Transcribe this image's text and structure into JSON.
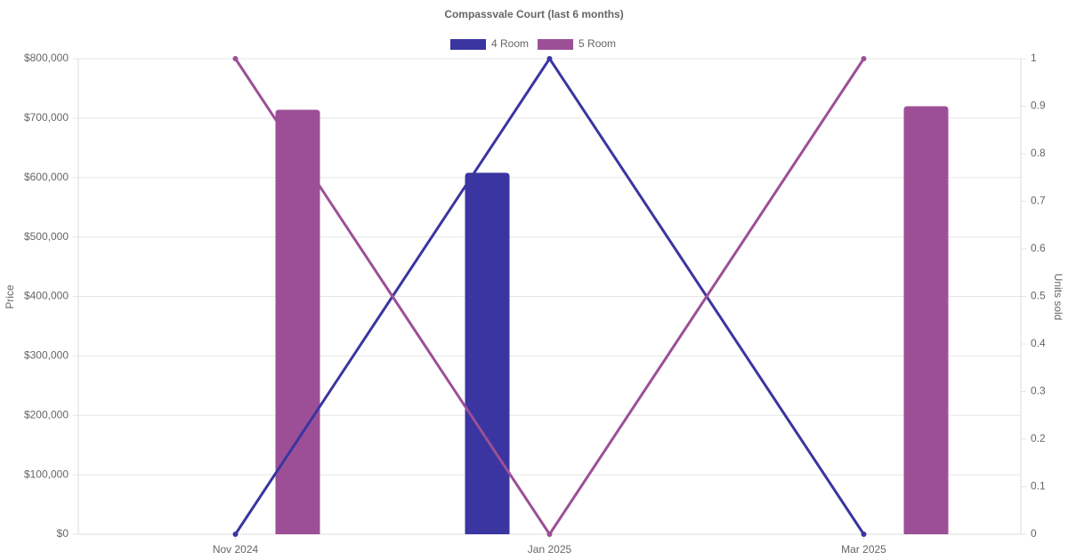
{
  "chart_data": {
    "type": "bar-line",
    "title": "Compassvale Court (last 6 months)",
    "categories": [
      "Nov 2024",
      "Jan 2025",
      "Mar 2025"
    ],
    "y_label": "Price",
    "y2_label": "Units sold",
    "series": [
      {
        "name": "4 Room",
        "color": "#3a35a0",
        "values": [
          null,
          608000,
          null
        ],
        "units": [
          0,
          1,
          0
        ]
      },
      {
        "name": "5 Room",
        "color": "#9c4f96",
        "values": [
          714000,
          null,
          720000
        ],
        "units": [
          1,
          0,
          1
        ]
      }
    ],
    "ylim": [
      0,
      800000
    ],
    "yticks": [
      {
        "value": 0,
        "label": "$0"
      },
      {
        "value": 100000,
        "label": "$100,000"
      },
      {
        "value": 200000,
        "label": "$200,000"
      },
      {
        "value": 300000,
        "label": "$300,000"
      },
      {
        "value": 400000,
        "label": "$400,000"
      },
      {
        "value": 500000,
        "label": "$500,000"
      },
      {
        "value": 600000,
        "label": "$600,000"
      },
      {
        "value": 700000,
        "label": "$700,000"
      },
      {
        "value": 800000,
        "label": "$800,000"
      }
    ],
    "y2lim": [
      0,
      1
    ],
    "y2ticks": [
      0,
      0.1,
      0.2,
      0.3,
      0.4,
      0.5,
      0.6,
      0.7,
      0.8,
      0.9,
      1
    ],
    "grid": true,
    "legend": "top"
  }
}
